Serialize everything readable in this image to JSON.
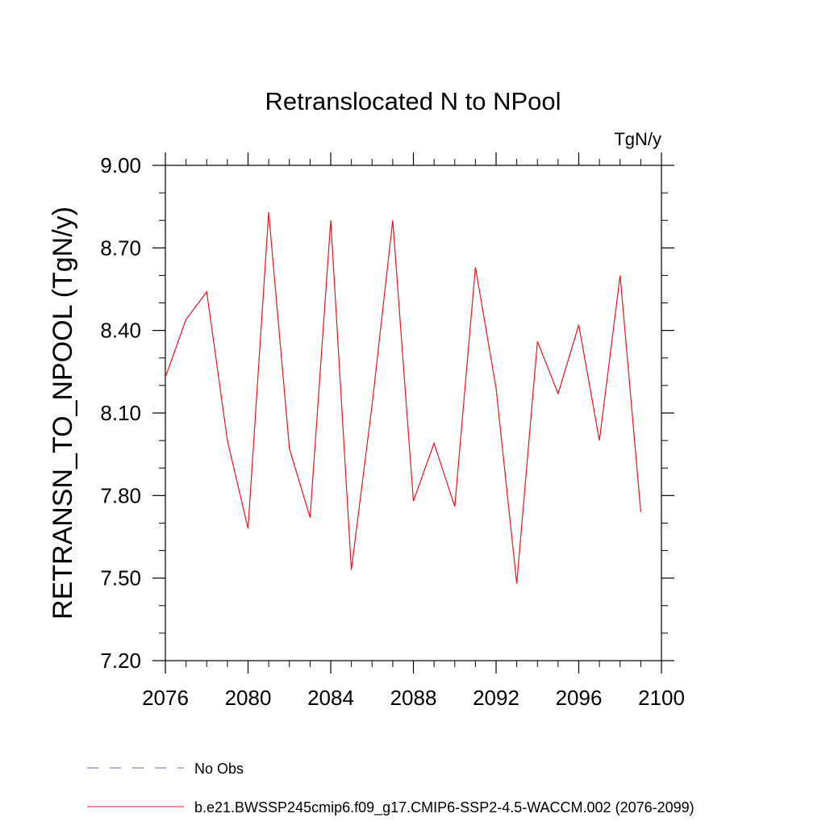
{
  "chart_data": {
    "type": "line",
    "title": "Retranslocated N to NPool",
    "units_label": "TgN/y",
    "ylabel": "RETRANSN_TO_NPOOL  (TgN/y)",
    "xlabel": "",
    "xlim": [
      2076,
      2100
    ],
    "ylim": [
      7.2,
      9.0
    ],
    "x_ticks": [
      2076,
      2080,
      2084,
      2088,
      2092,
      2096,
      2100
    ],
    "x_tick_labels": [
      "2076",
      "2080",
      "2084",
      "2088",
      "2092",
      "2096",
      "2100"
    ],
    "y_ticks": [
      7.2,
      7.5,
      7.8,
      8.1,
      8.4,
      8.7,
      9.0
    ],
    "y_tick_labels": [
      "7.20",
      "7.50",
      "7.80",
      "8.10",
      "8.40",
      "8.70",
      "9.00"
    ],
    "grid": false,
    "legend_position": "bottom",
    "series": [
      {
        "name": "b.e21.BWSSP245cmip6.f09_g17.CMIP6-SSP2-4.5-WACCM.002 (2076-2099)",
        "color": "#e8141e",
        "dash": "solid",
        "x": [
          2076,
          2077,
          2078,
          2079,
          2080,
          2081,
          2082,
          2083,
          2084,
          2085,
          2086,
          2087,
          2088,
          2089,
          2090,
          2091,
          2092,
          2093,
          2094,
          2095,
          2096,
          2097,
          2098,
          2099
        ],
        "values": [
          8.23,
          8.44,
          8.54,
          8.0,
          7.68,
          8.83,
          7.97,
          7.72,
          8.8,
          7.53,
          8.13,
          8.8,
          7.78,
          7.99,
          7.76,
          8.63,
          8.19,
          7.48,
          8.36,
          8.17,
          8.42,
          8.0,
          8.6,
          7.74
        ]
      }
    ],
    "legend": [
      {
        "label": "No Obs",
        "color": "#6f5fb0",
        "dash": "dashed"
      },
      {
        "label": "b.e21.BWSSP245cmip6.f09_g17.CMIP6-SSP2-4.5-WACCM.002 (2076-2099)",
        "color": "#e8141e",
        "dash": "solid"
      }
    ]
  }
}
